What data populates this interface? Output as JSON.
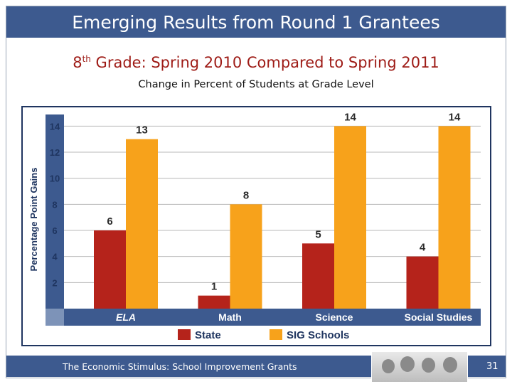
{
  "slide": {
    "title": "Emerging Results from Round 1 Grantees",
    "subtitle_prefix": "8",
    "subtitle_sup": "th",
    "subtitle_rest": " Grade: Spring 2010 Compared to Spring 2011",
    "caption": "Change in Percent of Students at Grade Level",
    "footer_text": "The Economic Stimulus:  School Improvement Grants",
    "page_number": "31"
  },
  "colors": {
    "title_bar": "#3d5a8f",
    "subtitle": "#9e1b16",
    "state": "#b5231b",
    "sig": "#f7a21b",
    "axis_band": "#3d5a8f",
    "axis_band_accent": "#7d93b8",
    "grid": "#b8b8b8"
  },
  "chart_data": {
    "type": "bar",
    "categories": [
      "ELA",
      "Math",
      "Science",
      "Social Studies"
    ],
    "series": [
      {
        "name": "State",
        "values": [
          6,
          1,
          5,
          4
        ]
      },
      {
        "name": "SIG Schools",
        "values": [
          13,
          8,
          14,
          14
        ]
      }
    ],
    "ylabel": "Percentage Point Gains",
    "yticks": [
      2,
      4,
      6,
      8,
      10,
      12,
      14
    ],
    "ylim": [
      0,
      15
    ],
    "grid": true,
    "legend_position": "bottom"
  }
}
